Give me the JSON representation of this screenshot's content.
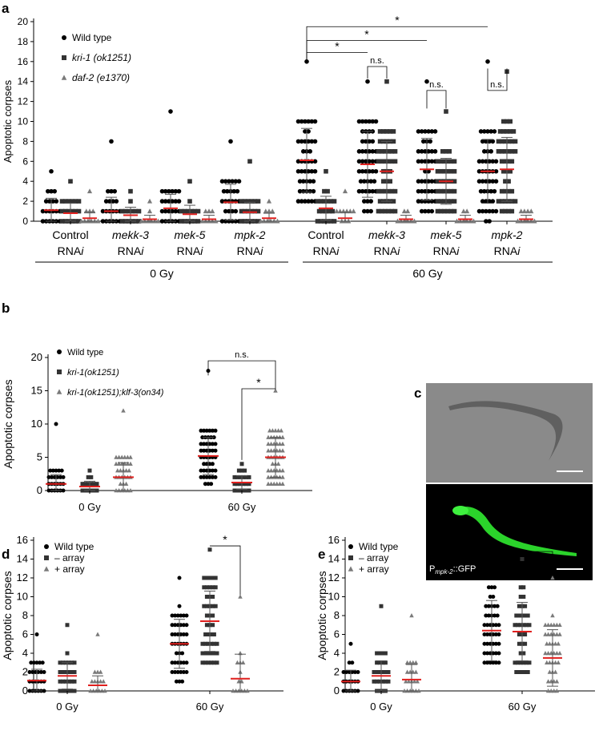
{
  "ylabel": "Apoptotic corpses",
  "panel_c": {
    "label": "c",
    "gfp_caption_p": "P",
    "gfp_caption_sub": "mpk-2",
    "gfp_caption_rest": "::GFP"
  },
  "chart_data": [
    {
      "panel": "a",
      "type": "scatter",
      "ylabel": "Apoptotic corpses",
      "ylim": [
        0,
        20
      ],
      "yticks": [
        0,
        2,
        4,
        6,
        8,
        10,
        12,
        14,
        16,
        18,
        20
      ],
      "legend": [
        "Wild type",
        "kri-1 (ok1251)",
        "daf-2 (e1370)"
      ],
      "groups": [
        {
          "l1": "Control",
          "l2": "RNAi"
        },
        {
          "l1": "mekk-3",
          "l2": "RNAi"
        },
        {
          "l1": "mek-5",
          "l2": "RNAi"
        },
        {
          "l1": "mpk-2",
          "l2": "RNAi"
        },
        {
          "l1": "Control",
          "l2": "RNAi"
        },
        {
          "l1": "mekk-3",
          "l2": "RNAi"
        },
        {
          "l1": "mek-5",
          "l2": "RNAi"
        },
        {
          "l1": "mpk-2",
          "l2": "RNAi"
        }
      ],
      "conditions": [
        {
          "label": "0 Gy",
          "groups": [
            0,
            1,
            2,
            3
          ]
        },
        {
          "label": "60 Gy",
          "groups": [
            4,
            5,
            6,
            7
          ]
        }
      ],
      "series": [
        {
          "name": "Wild type",
          "shape": "circle",
          "means": [
            1.1,
            1.0,
            1.3,
            1.9,
            6.1,
            5.7,
            5.2,
            5.0
          ],
          "sd": [
            1.2,
            1.4,
            1.4,
            1.8,
            3.2,
            3.3,
            3.1,
            3.2
          ],
          "max": [
            5,
            8,
            11,
            8,
            16,
            14,
            14,
            16
          ],
          "count": [
            30,
            30,
            30,
            35,
            55,
            55,
            55,
            55
          ]
        },
        {
          "name": "kri-1 (ok1251)",
          "shape": "square",
          "means": [
            0.8,
            0.6,
            0.7,
            0.9,
            1.3,
            5.0,
            4.0,
            5.2
          ],
          "sd": [
            1.0,
            0.8,
            0.9,
            1.0,
            1.2,
            3.0,
            2.3,
            3.2
          ],
          "max": [
            4,
            3,
            4,
            6,
            5,
            14,
            11,
            15
          ],
          "count": [
            28,
            20,
            22,
            28,
            28,
            52,
            50,
            52
          ]
        },
        {
          "name": "daf-2 (e1370)",
          "shape": "triangle",
          "means": [
            0.3,
            0.2,
            0.2,
            0.3,
            0.3,
            0.2,
            0.2,
            0.2
          ],
          "sd": [
            0.6,
            0.4,
            0.4,
            0.5,
            0.6,
            0.4,
            0.4,
            0.4
          ],
          "max": [
            3,
            2,
            1,
            2,
            3,
            1,
            1,
            1
          ],
          "count": [
            14,
            10,
            8,
            12,
            14,
            10,
            10,
            10
          ]
        }
      ],
      "significance": [
        {
          "label": "*",
          "from": [
            4,
            0
          ],
          "to": [
            7,
            0
          ]
        },
        {
          "label": "*",
          "from": [
            4,
            0
          ],
          "to": [
            6,
            0
          ]
        },
        {
          "label": "*",
          "from": [
            4,
            0
          ],
          "to": [
            5,
            0
          ]
        },
        {
          "label": "n.s.",
          "from": [
            5,
            0
          ],
          "to": [
            5,
            1
          ]
        },
        {
          "label": "n.s.",
          "from": [
            6,
            0
          ],
          "to": [
            6,
            1
          ]
        },
        {
          "label": "n.s.",
          "from": [
            7,
            0
          ],
          "to": [
            7,
            1
          ]
        }
      ]
    },
    {
      "panel": "b",
      "type": "scatter",
      "ylabel": "Apoptotic corpses",
      "ylim": [
        0,
        20
      ],
      "yticks": [
        0,
        5,
        10,
        15,
        20
      ],
      "legend": [
        "Wild type",
        "kri-1(ok1251)",
        "kri-1(ok1251);klf-3(on34)"
      ],
      "conditions": [
        {
          "label": "0 Gy"
        },
        {
          "label": "60 Gy"
        }
      ],
      "series": [
        {
          "name": "Wild type",
          "shape": "circle",
          "means": [
            1.0,
            5.2
          ],
          "sd": [
            1.4,
            2.8
          ],
          "max": [
            10,
            18
          ],
          "count": [
            40,
            70
          ]
        },
        {
          "name": "kri-1(ok1251)",
          "shape": "square",
          "means": [
            0.6,
            1.2
          ],
          "sd": [
            0.8,
            1.0
          ],
          "max": [
            3,
            4
          ],
          "count": [
            25,
            35
          ]
        },
        {
          "name": "kri-1(ok1251);klf-3(on34)",
          "shape": "triangle",
          "means": [
            2.0,
            5.0
          ],
          "sd": [
            2.2,
            3.0
          ],
          "max": [
            12,
            15
          ],
          "count": [
            50,
            70
          ]
        }
      ],
      "significance": [
        {
          "label": "n.s.",
          "from": [
            1,
            0
          ],
          "to": [
            1,
            2
          ]
        },
        {
          "label": "*",
          "from": [
            1,
            1
          ],
          "to": [
            1,
            2
          ]
        }
      ]
    },
    {
      "panel": "d",
      "type": "scatter",
      "ylabel": "Apoptotic corpses",
      "ylim": [
        0,
        16
      ],
      "yticks": [
        0,
        2,
        4,
        6,
        8,
        10,
        12,
        14,
        16
      ],
      "legend": [
        "Wild type",
        "– array",
        "+ array"
      ],
      "conditions": [
        {
          "label": "0 Gy"
        },
        {
          "label": "60 Gy"
        }
      ],
      "series": [
        {
          "name": "Wild type",
          "shape": "circle",
          "means": [
            1.1,
            5.0
          ],
          "sd": [
            1.2,
            2.6
          ],
          "max": [
            6,
            12
          ],
          "count": [
            40,
            60
          ]
        },
        {
          "name": "– array",
          "shape": "square",
          "means": [
            1.6,
            7.4
          ],
          "sd": [
            1.4,
            3.2
          ],
          "max": [
            7,
            15
          ],
          "count": [
            35,
            50
          ]
        },
        {
          "name": "+ array",
          "shape": "triangle",
          "means": [
            0.6,
            1.3
          ],
          "sd": [
            1.0,
            2.6
          ],
          "max": [
            6,
            10
          ],
          "count": [
            20,
            15
          ]
        }
      ],
      "significance": [
        {
          "label": "*",
          "from": [
            1,
            1
          ],
          "to": [
            1,
            2
          ]
        }
      ]
    },
    {
      "panel": "e",
      "type": "scatter",
      "ylabel": "Apoptotic corpses",
      "ylim": [
        0,
        16
      ],
      "yticks": [
        0,
        2,
        4,
        6,
        8,
        10,
        12,
        14,
        16
      ],
      "legend": [
        "Wild type",
        "– array",
        "+ array"
      ],
      "conditions": [
        {
          "label": "0 Gy"
        },
        {
          "label": "60 Gy"
        }
      ],
      "series": [
        {
          "name": "Wild type",
          "shape": "circle",
          "means": [
            1.0,
            6.4
          ],
          "sd": [
            1.2,
            3.2
          ],
          "max": [
            5,
            16
          ],
          "count": [
            35,
            60
          ]
        },
        {
          "name": "– array",
          "shape": "square",
          "means": [
            1.6,
            6.3
          ],
          "sd": [
            1.6,
            3.1
          ],
          "max": [
            9,
            14
          ],
          "count": [
            35,
            45
          ]
        },
        {
          "name": "+ array",
          "shape": "triangle",
          "means": [
            1.2,
            3.5
          ],
          "sd": [
            1.6,
            3.0
          ],
          "max": [
            8,
            12
          ],
          "count": [
            30,
            45
          ]
        }
      ],
      "significance": [
        {
          "label": "*",
          "from": [
            1,
            1
          ],
          "to": [
            1,
            2
          ]
        }
      ]
    }
  ]
}
